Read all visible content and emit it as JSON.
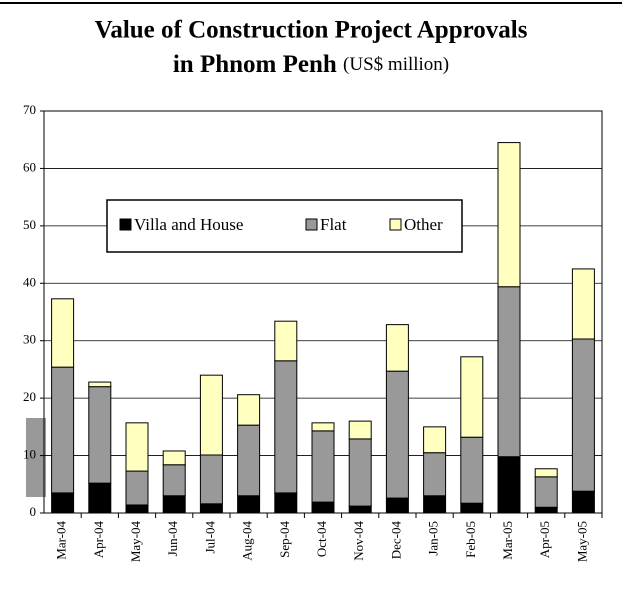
{
  "chart_data": {
    "type": "stacked_bar",
    "title": "Value of Construction Project Approvals",
    "title_line2": "in Phnom Penh",
    "unit": "(US$ million)",
    "categories": [
      "Mar-04",
      "Apr-04",
      "May-04",
      "Jun-04",
      "Jul-04",
      "Aug-04",
      "Sep-04",
      "Oct-04",
      "Nov-04",
      "Dec-04",
      "Jan-05",
      "Feb-05",
      "Mar-05",
      "Apr-05",
      "May-05"
    ],
    "series": [
      {
        "name": "Villa and House",
        "color": "#000000",
        "values": [
          3.5,
          5.2,
          1.4,
          3.0,
          1.6,
          3.0,
          3.5,
          1.9,
          1.2,
          2.6,
          3.0,
          1.7,
          9.8,
          1.0,
          3.8
        ]
      },
      {
        "name": "Flat",
        "color": "#999999",
        "values": [
          21.9,
          16.8,
          5.9,
          5.4,
          8.5,
          12.3,
          23.0,
          12.4,
          11.7,
          22.1,
          7.5,
          11.5,
          29.6,
          5.3,
          26.5
        ]
      },
      {
        "name": "Other",
        "color": "#ffffc0",
        "values": [
          11.9,
          0.8,
          8.4,
          2.4,
          13.9,
          5.3,
          6.9,
          1.4,
          3.1,
          8.1,
          4.5,
          14.0,
          25.1,
          1.4,
          12.2
        ]
      }
    ],
    "ylim": [
      0,
      70
    ],
    "yticks": [
      0,
      10,
      20,
      30,
      40,
      50,
      60,
      70
    ],
    "grid": true
  }
}
